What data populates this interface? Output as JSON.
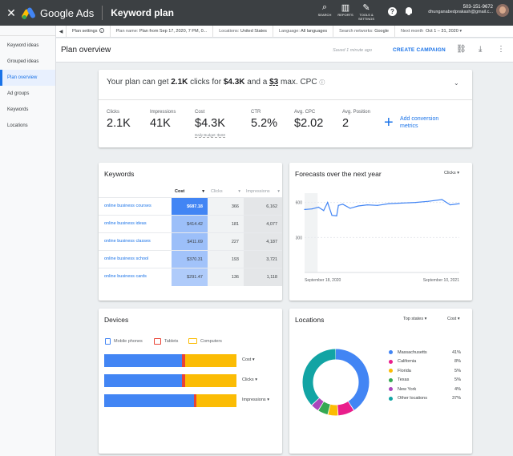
{
  "topbar": {
    "close_glyph": "✕",
    "product": "Google Ads",
    "page": "Keyword plan",
    "tools": [
      {
        "label": "SEARCH",
        "glyph": "⌕",
        "icon": "search-icon"
      },
      {
        "label": "REPORTS",
        "glyph": "▥",
        "icon": "reports-icon"
      },
      {
        "label": "TOOLS & SETTINGS",
        "glyph": "✎",
        "icon": "wrench-icon"
      }
    ],
    "help_glyph": "?",
    "phone": "503-151-9672",
    "email": "dhunganabedprakash@gmail.c..."
  },
  "sidebar": {
    "items": [
      {
        "label": "Keyword ideas",
        "active": false
      },
      {
        "label": "Grouped ideas",
        "active": false
      },
      {
        "label": "Plan overview",
        "active": true
      },
      {
        "label": "Ad groups",
        "active": false
      },
      {
        "label": "Keywords",
        "active": false
      },
      {
        "label": "Locations",
        "active": false
      }
    ]
  },
  "settings": {
    "collapse_glyph": "◀",
    "plan_settings": "Plan settings",
    "plan_name_label": "Plan name: ",
    "plan_name": "Plan from Sep 17, 2020, 7 PM, 0...",
    "locations_label": "Locations: ",
    "locations": "United States",
    "language_label": "Language: ",
    "language": "All languages",
    "networks_label": "Search networks: ",
    "networks": "Google",
    "period_label": "Next month",
    "period": "Oct 1 – 31, 2020",
    "period_glyph": "▾"
  },
  "overview": {
    "title": "Plan overview",
    "saved": "Saved 1 minute ago",
    "cta": "CREATE CAMPAIGN",
    "icon_glyphs": [
      "⛓",
      "⤓",
      "⋮"
    ]
  },
  "summary": {
    "prefix": "Your plan can get ",
    "clicks": "2.1K",
    "mid1": " clicks for ",
    "cost": "$4.3K",
    "mid2": " and a ",
    "cpc": "$3",
    "suffix": " max. CPC",
    "info_glyph": "ⓘ",
    "chevron_glyph": "⌄",
    "metrics": [
      {
        "label": "Clicks",
        "value": "2.1K"
      },
      {
        "label": "Impressions",
        "value": "41K"
      },
      {
        "label": "Cost",
        "value": "$4.3K",
        "sub": "Daily Budget: $160"
      },
      {
        "label": "CTR",
        "value": "5.2%"
      },
      {
        "label": "Avg. CPC",
        "value": "$2.02"
      },
      {
        "label": "Avg. Position",
        "value": "2"
      }
    ],
    "add_glyph": "+",
    "add_label": "Add conversion metrics"
  },
  "keywords": {
    "title": "Keywords",
    "columns": [
      {
        "label": "Cost",
        "sort": "▾"
      },
      {
        "label": "Clicks",
        "sort": "▾"
      },
      {
        "label": "Impressions",
        "sort": "▾"
      }
    ],
    "rows": [
      {
        "keyword": "online business courses",
        "cost": "$687.18",
        "clicks": "366",
        "impressions": "6,162",
        "cost_share": 1.0
      },
      {
        "keyword": "online business ideas",
        "cost": "$414.42",
        "clicks": "181",
        "impressions": "4,077",
        "cost_share": 0.6
      },
      {
        "keyword": "online business classes",
        "cost": "$411.69",
        "clicks": "227",
        "impressions": "4,187",
        "cost_share": 0.6
      },
      {
        "keyword": "online business school",
        "cost": "$370.31",
        "clicks": "193",
        "impressions": "3,721",
        "cost_share": 0.54
      },
      {
        "keyword": "online business cards",
        "cost": "$291.47",
        "clicks": "136",
        "impressions": "1,118",
        "cost_share": 0.42
      }
    ]
  },
  "forecast": {
    "title": "Forecasts over the next year",
    "selector": "Clicks",
    "selector_glyph": "▾"
  },
  "chart_data": {
    "type": "line",
    "x": [
      "2020-09-18",
      "2020-10-05",
      "2020-10-20",
      "2020-11-01",
      "2020-11-10",
      "2020-11-20",
      "2020-12-01",
      "2020-12-05",
      "2020-12-15",
      "2021-01-01",
      "2021-01-20",
      "2021-02-10",
      "2021-03-05",
      "2021-04-01",
      "2021-05-01",
      "2021-06-01",
      "2021-07-01",
      "2021-08-01",
      "2021-08-20",
      "2021-09-10"
    ],
    "series": [
      {
        "values": [
          540,
          545,
          560,
          530,
          600,
          490,
          485,
          575,
          585,
          550,
          570,
          580,
          575,
          590,
          595,
          600,
          610,
          625,
          580,
          590
        ]
      }
    ],
    "yticks": [
      600,
      300
    ],
    "ylim": [
      0,
      680
    ],
    "xtick_labels": [
      "September 18, 2020",
      "September 10, 2021"
    ],
    "line_color": "#4285f4",
    "shaded_start": "2020-09-18",
    "shaded_end": "2020-10-18",
    "grid": true
  },
  "devices": {
    "title": "Devices",
    "legend": [
      {
        "label": "Mobile phones",
        "color": "#4285f4"
      },
      {
        "label": "Tablets",
        "color": "#ea4335"
      },
      {
        "label": "Computers",
        "color": "#fbbc04"
      }
    ],
    "bars": [
      {
        "label": "Cost",
        "phones": 0.59,
        "tablets": 0.02,
        "computers": 0.39
      },
      {
        "label": "Clicks",
        "phones": 0.59,
        "tablets": 0.02,
        "computers": 0.39
      },
      {
        "label": "Impressions",
        "phones": 0.68,
        "tablets": 0.02,
        "computers": 0.3
      }
    ],
    "dropdown_glyph": "▾"
  },
  "locations": {
    "title": "Locations",
    "filter": "Top states",
    "metric": "Cost",
    "dropdown_glyph": "▾",
    "items": [
      {
        "name": "Massachusetts",
        "pct": "41%",
        "value": 41,
        "color": "#4285f4"
      },
      {
        "name": "California",
        "pct": "8%",
        "value": 8,
        "color": "#e91e8c"
      },
      {
        "name": "Florida",
        "pct": "5%",
        "value": 5,
        "color": "#fbbc04"
      },
      {
        "name": "Texas",
        "pct": "5%",
        "value": 5,
        "color": "#34a853"
      },
      {
        "name": "New York",
        "pct": "4%",
        "value": 4,
        "color": "#ab47bc"
      },
      {
        "name": "Other locations",
        "pct": "37%",
        "value": 37,
        "color": "#12a4a4"
      }
    ]
  }
}
